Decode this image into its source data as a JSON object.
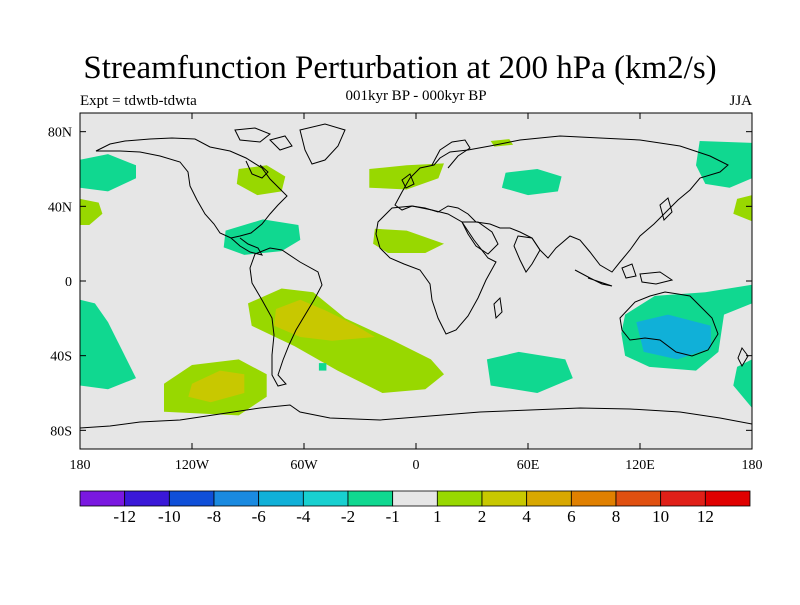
{
  "title": "Streamfunction Perturbation at 200 hPa (km2/s)",
  "subtitle": "001kyr BP - 000kyr BP",
  "left_label": "Expt = tdwtb-tdwta",
  "right_label": "JJA",
  "map": {
    "projection": "cylindrical-equidistant",
    "lon_range": [
      -180,
      180
    ],
    "lat_range": [
      -90,
      90
    ],
    "background_color": "#e6e6e6",
    "lat_ticks": [
      {
        "lat": 80,
        "label": "80N"
      },
      {
        "lat": 40,
        "label": "40N"
      },
      {
        "lat": 0,
        "label": "0"
      },
      {
        "lat": -40,
        "label": "40S"
      },
      {
        "lat": -80,
        "label": "80S"
      }
    ],
    "lon_ticks": [
      {
        "lon": -180,
        "label": "180"
      },
      {
        "lon": -120,
        "label": "120W"
      },
      {
        "lon": -60,
        "label": "60W"
      },
      {
        "lon": 0,
        "label": "0"
      },
      {
        "lon": 60,
        "label": "60E"
      },
      {
        "lon": 120,
        "label": "120E"
      },
      {
        "lon": 180,
        "label": "180"
      }
    ]
  },
  "colorbar": {
    "colors": [
      "#7a18e0",
      "#3a18d8",
      "#0f4fd8",
      "#1a8ae0",
      "#10b0d8",
      "#18d0d0",
      "#10d890",
      "#e6e6e6",
      "#98d800",
      "#c8c800",
      "#d8a800",
      "#e08000",
      "#e05010",
      "#e02018",
      "#e00000"
    ],
    "labels": [
      "-12",
      "-10",
      "-8",
      "-6",
      "-4",
      "-2",
      "-1",
      "1",
      "2",
      "4",
      "6",
      "8",
      "10",
      "12"
    ]
  },
  "anomalies": [
    {
      "name": "north-pacific-west",
      "color": "#10d890",
      "poly": [
        [
          -180,
          65
        ],
        [
          -180,
          50
        ],
        [
          -165,
          48
        ],
        [
          -150,
          55
        ],
        [
          -150,
          62
        ],
        [
          -165,
          68
        ]
      ]
    },
    {
      "name": "west-edge-40n",
      "color": "#98d800",
      "poly": [
        [
          -180,
          44
        ],
        [
          -170,
          42
        ],
        [
          -168,
          36
        ],
        [
          -175,
          30
        ],
        [
          -180,
          30
        ]
      ]
    },
    {
      "name": "north-america",
      "color": "#98d800",
      "poly": [
        [
          -95,
          60
        ],
        [
          -80,
          62
        ],
        [
          -70,
          56
        ],
        [
          -72,
          48
        ],
        [
          -85,
          46
        ],
        [
          -96,
          52
        ]
      ]
    },
    {
      "name": "caribbean",
      "color": "#10d890",
      "poly": [
        [
          -102,
          27
        ],
        [
          -82,
          33
        ],
        [
          -63,
          30
        ],
        [
          -62,
          22
        ],
        [
          -72,
          16
        ],
        [
          -92,
          14
        ],
        [
          -103,
          18
        ]
      ]
    },
    {
      "name": "north-atlantic",
      "color": "#98d800",
      "poly": [
        [
          -25,
          60
        ],
        [
          -5,
          62
        ],
        [
          15,
          63
        ],
        [
          12,
          55
        ],
        [
          -5,
          49
        ],
        [
          -25,
          50
        ]
      ]
    },
    {
      "name": "tropical-atlantic",
      "color": "#98d800",
      "poly": [
        [
          -22,
          28
        ],
        [
          -5,
          27
        ],
        [
          15,
          20
        ],
        [
          5,
          15
        ],
        [
          -15,
          15
        ],
        [
          -23,
          20
        ]
      ]
    },
    {
      "name": "siberia",
      "color": "#10d890",
      "poly": [
        [
          48,
          58
        ],
        [
          65,
          60
        ],
        [
          78,
          56
        ],
        [
          76,
          48
        ],
        [
          60,
          46
        ],
        [
          46,
          50
        ]
      ]
    },
    {
      "name": "africa-sliver",
      "color": "#98d800",
      "poly": [
        [
          40,
          75
        ],
        [
          50,
          76
        ],
        [
          52,
          73
        ],
        [
          42,
          72
        ]
      ]
    },
    {
      "name": "east-asia-ne",
      "color": "#10d890",
      "poly": [
        [
          152,
          75
        ],
        [
          180,
          74
        ],
        [
          180,
          55
        ],
        [
          168,
          50
        ],
        [
          155,
          52
        ],
        [
          150,
          62
        ]
      ]
    },
    {
      "name": "east-edge-40n",
      "color": "#98d800",
      "poly": [
        [
          180,
          46
        ],
        [
          172,
          44
        ],
        [
          170,
          36
        ],
        [
          180,
          32
        ]
      ]
    },
    {
      "name": "south-america-atlantic",
      "color": "#98d800",
      "poly": [
        [
          -90,
          -12
        ],
        [
          -72,
          -4
        ],
        [
          -55,
          -6
        ],
        [
          -38,
          -20
        ],
        [
          -12,
          -32
        ],
        [
          8,
          -42
        ],
        [
          15,
          -50
        ],
        [
          5,
          -58
        ],
        [
          -18,
          -60
        ],
        [
          -42,
          -48
        ],
        [
          -65,
          -35
        ],
        [
          -88,
          -24
        ]
      ]
    },
    {
      "name": "south-america-atlantic-core",
      "color": "#c8c800",
      "poly": [
        [
          -75,
          -15
        ],
        [
          -62,
          -10
        ],
        [
          -48,
          -16
        ],
        [
          -32,
          -24
        ],
        [
          -22,
          -30
        ],
        [
          -45,
          -32
        ],
        [
          -62,
          -30
        ],
        [
          -76,
          -24
        ]
      ]
    },
    {
      "name": "pacific-west-south",
      "color": "#10d890",
      "poly": [
        [
          -180,
          -10
        ],
        [
          -172,
          -12
        ],
        [
          -165,
          -22
        ],
        [
          -157,
          -38
        ],
        [
          -150,
          -52
        ],
        [
          -165,
          -58
        ],
        [
          -180,
          -56
        ]
      ]
    },
    {
      "name": "south-pacific-right",
      "color": "#98d800",
      "poly": [
        [
          -135,
          -55
        ],
        [
          -120,
          -45
        ],
        [
          -95,
          -42
        ],
        [
          -80,
          -50
        ],
        [
          -80,
          -62
        ],
        [
          -95,
          -72
        ],
        [
          -135,
          -70
        ]
      ]
    },
    {
      "name": "south-pacific-core",
      "color": "#c8c800",
      "poly": [
        [
          -120,
          -55
        ],
        [
          -105,
          -48
        ],
        [
          -92,
          -50
        ],
        [
          -92,
          -60
        ],
        [
          -110,
          -65
        ],
        [
          -122,
          -62
        ]
      ]
    },
    {
      "name": "south-indian",
      "color": "#10d890",
      "poly": [
        [
          38,
          -42
        ],
        [
          55,
          -38
        ],
        [
          80,
          -42
        ],
        [
          84,
          -52
        ],
        [
          65,
          -60
        ],
        [
          40,
          -56
        ]
      ]
    },
    {
      "name": "small-spot",
      "color": "#10d890",
      "poly": [
        [
          -52,
          -44
        ],
        [
          -48,
          -44
        ],
        [
          -48,
          -48
        ],
        [
          -52,
          -48
        ]
      ]
    },
    {
      "name": "australia",
      "color": "#10d890",
      "poly": [
        [
          112,
          -18
        ],
        [
          128,
          -8
        ],
        [
          155,
          -6
        ],
        [
          180,
          -2
        ],
        [
          180,
          -12
        ],
        [
          165,
          -18
        ],
        [
          162,
          -38
        ],
        [
          150,
          -48
        ],
        [
          125,
          -46
        ],
        [
          112,
          -40
        ],
        [
          110,
          -28
        ]
      ]
    },
    {
      "name": "australia-core",
      "color": "#10b0d8",
      "poly": [
        [
          118,
          -22
        ],
        [
          135,
          -18
        ],
        [
          158,
          -24
        ],
        [
          158,
          -36
        ],
        [
          140,
          -42
        ],
        [
          122,
          -38
        ]
      ]
    },
    {
      "name": "east-edge-south",
      "color": "#10d890",
      "poly": [
        [
          180,
          -42
        ],
        [
          172,
          -46
        ],
        [
          170,
          -56
        ],
        [
          180,
          -68
        ]
      ]
    }
  ]
}
